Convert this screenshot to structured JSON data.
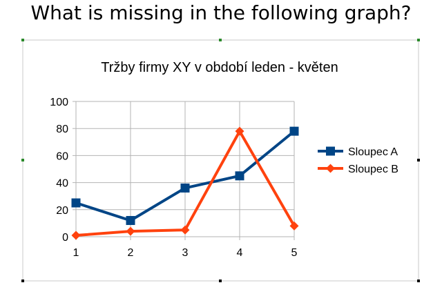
{
  "question": "What is missing in the following graph?",
  "colors": {
    "series_a": "#004586",
    "series_b": "#ff420e",
    "grid": "#b3b3b3",
    "axis": "#b3b3b3",
    "text": "#000000",
    "frame": "#c8c8c8"
  },
  "chart_data": {
    "type": "line",
    "title": "Tržby firmy XY v období leden - květen",
    "xlabel": "",
    "ylabel": "",
    "x": [
      1,
      2,
      3,
      4,
      5
    ],
    "categories": [
      "1",
      "2",
      "3",
      "4",
      "5"
    ],
    "ylim": [
      0,
      100
    ],
    "yticks": [
      0,
      20,
      40,
      60,
      80,
      100
    ],
    "grid": true,
    "legend_position": "right",
    "series": [
      {
        "name": "Sloupec A",
        "values": [
          25,
          12,
          36,
          45,
          78
        ],
        "marker": "square",
        "color": "#004586"
      },
      {
        "name": "Sloupec B",
        "values": [
          1,
          4,
          5,
          78,
          8
        ],
        "marker": "diamond",
        "color": "#ff420e"
      }
    ]
  }
}
